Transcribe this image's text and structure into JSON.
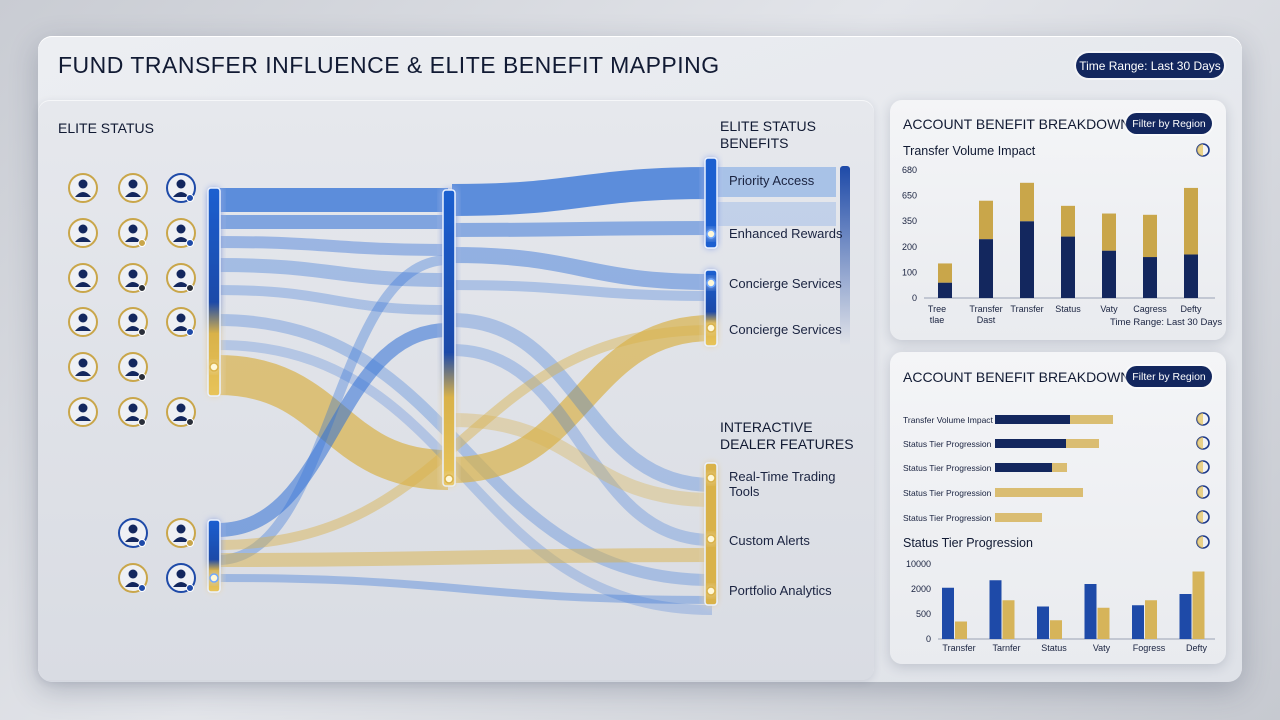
{
  "header": {
    "title": "FUND TRANSFER INFLUENCE & ELITE BENEFIT MAPPING",
    "time_range": "Time Range: Last 30 Days"
  },
  "sankey": {
    "left_heading": "ELITE STATUS",
    "benefits_heading": "ELITE STATUS BENEFITS",
    "benefits": [
      "Priority Access",
      "Enhanced Rewards",
      "Concierge Services",
      "Concierge Services"
    ],
    "features_heading": "INTERACTIVE DEALER FEATURES",
    "features": [
      "Real-Time Trading Tools",
      "Custom Alerts",
      "Portfolio Analytics"
    ],
    "colors": {
      "blue": "#2f6fd6",
      "gold": "#d9b24a",
      "navy": "#13275e"
    }
  },
  "card1": {
    "title": "ACCOUNT BENEFIT BREAKDOWN",
    "filter_label": "Filter by Region",
    "subtitle": "Transfer Volume Impact",
    "footer": "Time Range: Last 30 Days"
  },
  "card2": {
    "title": "ACCOUNT BENEFIT BREAKDOWN",
    "filter_label": "Filter by Region",
    "subtitle": "Status Tier Progression"
  },
  "chart_data": [
    {
      "type": "bar",
      "stacked": true,
      "categories": [
        "Tree tlae",
        "Transfer Dast",
        "Transfer",
        "Status",
        "Vaty",
        "Cagress",
        "Defty"
      ],
      "yticks": [
        "0",
        "100",
        "200",
        "350",
        "650",
        "680"
      ],
      "ylim": [
        0,
        5
      ],
      "series": [
        {
          "values": [
            0.6,
            2.3,
            3.0,
            2.4,
            1.85,
            1.6,
            1.7
          ]
        },
        {
          "values": [
            0.75,
            1.5,
            1.5,
            1.2,
            1.45,
            1.65,
            2.6
          ]
        }
      ],
      "colors": [
        "#13275e",
        "#c9a64a"
      ]
    },
    {
      "type": "bar",
      "orientation": "horizontal",
      "stacked": true,
      "categories": [
        "Transfer Volume Impact",
        "Status Tier Progression",
        "Status Tier Progression",
        "Status Tier Progression",
        "Status Tier Progression"
      ],
      "series": [
        {
          "values": [
            75,
            71,
            57,
            0,
            0
          ]
        },
        {
          "values": [
            43,
            33,
            15,
            88,
            47
          ]
        }
      ],
      "colors": [
        "#13275e",
        "#d6b45a"
      ]
    },
    {
      "type": "bar",
      "categories": [
        "Transfer",
        "Tarnfer",
        "Status",
        "Vaty",
        "Fogress",
        "Defty"
      ],
      "yticks": [
        "0",
        "500",
        "2000",
        "10000"
      ],
      "ylim": [
        0,
        3
      ],
      "series": [
        {
          "values": [
            2.05,
            2.35,
            1.3,
            2.2,
            1.35,
            1.8
          ]
        },
        {
          "values": [
            0.7,
            1.55,
            0.75,
            1.25,
            1.55,
            2.7
          ]
        }
      ],
      "colors": [
        "#1e4aa8",
        "#d6b45a"
      ]
    }
  ]
}
